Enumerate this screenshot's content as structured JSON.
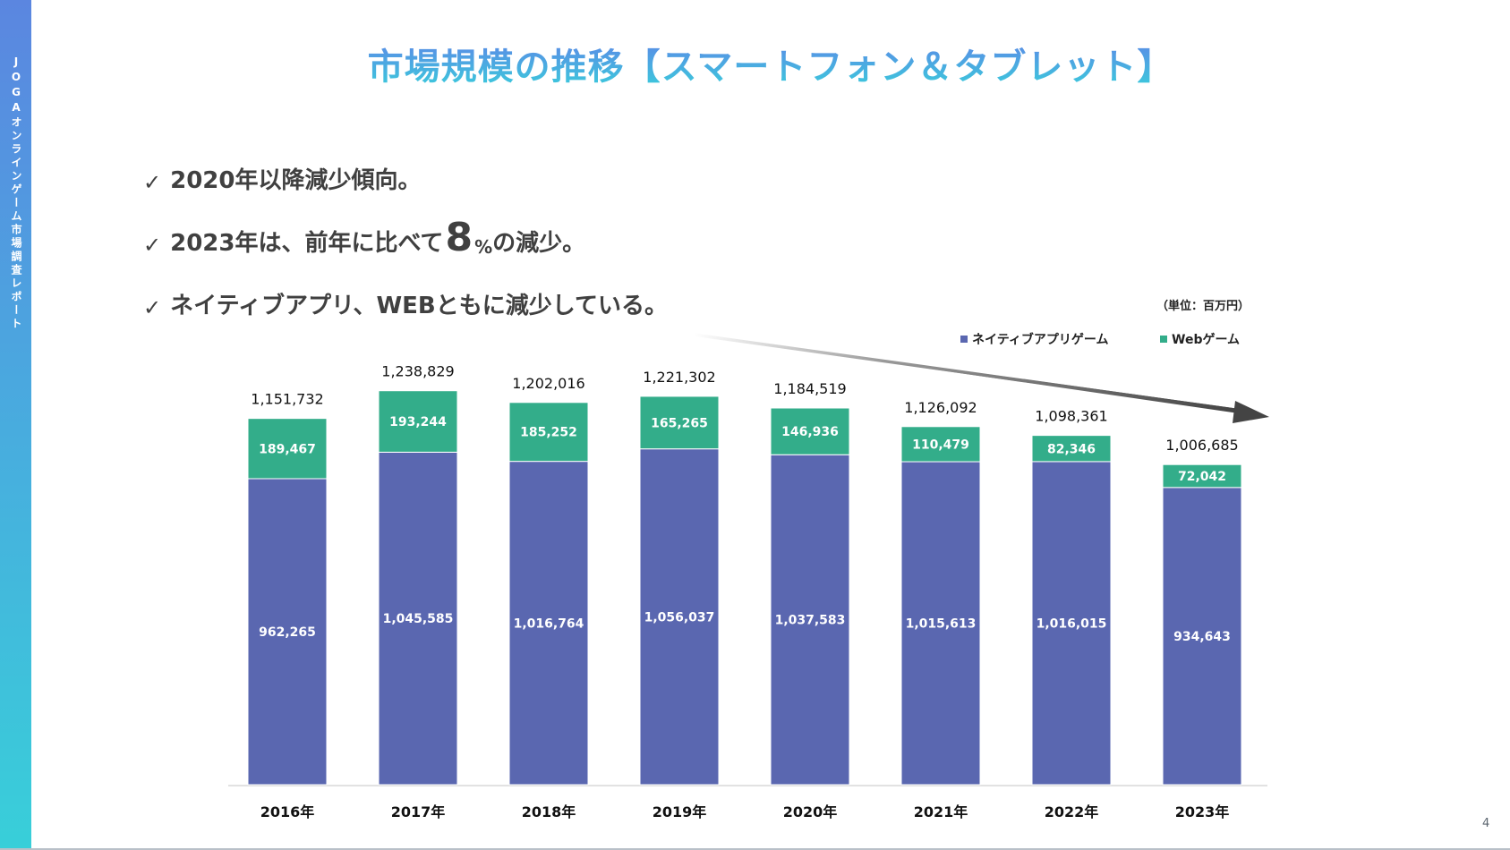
{
  "sidebar": {
    "label": "JOGAオンラインゲーム市場調査レポート"
  },
  "title": "市場規模の推移【スマートフォン＆タブレット】",
  "bullets": [
    {
      "check": "✓",
      "text": "2020年以降減少傾向。"
    },
    {
      "check": "✓",
      "pre": "2023年は、前年に比べて",
      "big": "8",
      "pct": "%",
      "post": "の減少。"
    },
    {
      "check": "✓",
      "text": "ネイティブアプリ、WEBともに減少している。"
    }
  ],
  "unit_note": "（単位：百万円）",
  "page_number": "4",
  "colors": {
    "native": "#5a67b0",
    "web": "#33ad8a",
    "arrow": "#444444"
  },
  "chart_data": {
    "type": "bar",
    "stacked": true,
    "title": "市場規模の推移【スマートフォン＆タブレット】",
    "xlabel": "",
    "ylabel": "",
    "unit": "百万円",
    "categories": [
      "2016年",
      "2017年",
      "2018年",
      "2019年",
      "2020年",
      "2021年",
      "2022年",
      "2023年"
    ],
    "series": [
      {
        "name": "ネイティブアプリゲーム",
        "values": [
          962265,
          1045585,
          1016764,
          1056037,
          1037583,
          1015613,
          1016015,
          934643
        ]
      },
      {
        "name": "Webゲーム",
        "values": [
          189467,
          193244,
          185252,
          165265,
          146936,
          110479,
          82346,
          72042
        ]
      }
    ],
    "totals": [
      1151732,
      1238829,
      1202016,
      1221302,
      1184519,
      1126092,
      1098361,
      1006685
    ],
    "ylim": [
      0,
      1250000
    ],
    "grid": false,
    "legend": "top-right",
    "annotations": [
      "downward trend arrow from 2019 to 2023"
    ]
  }
}
